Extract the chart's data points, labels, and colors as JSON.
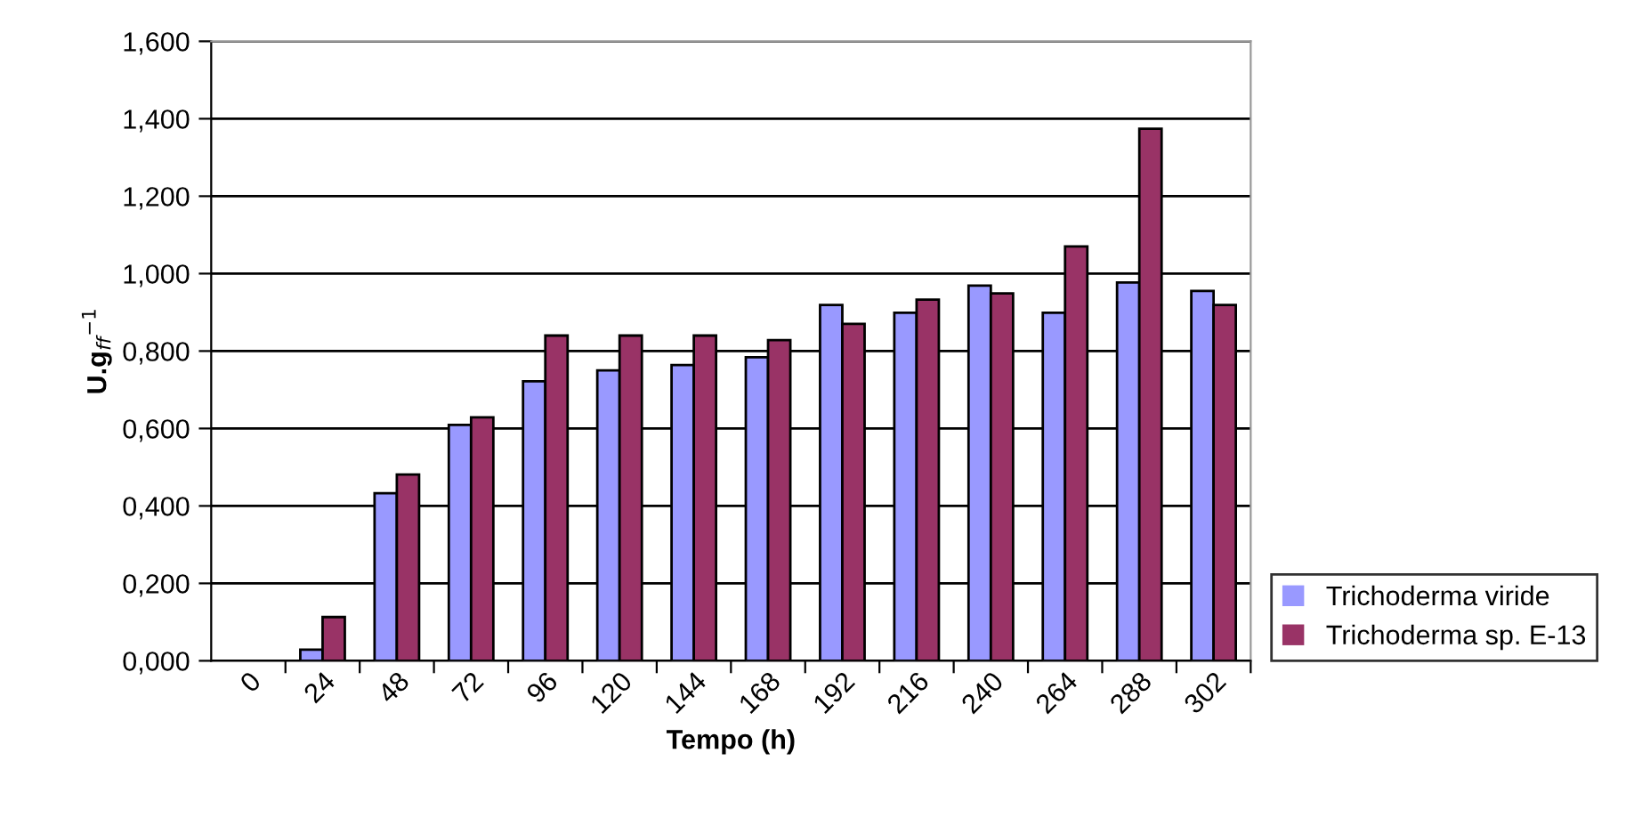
{
  "chart_data": {
    "type": "bar",
    "xlabel": "Tempo (h)",
    "ylabel": "U.g$_{ff}$$^{−1}$",
    "categories": [
      "0",
      "24",
      "48",
      "72",
      "96",
      "120",
      "144",
      "168",
      "192",
      "216",
      "240",
      "264",
      "288",
      "302"
    ],
    "series": [
      {
        "name": "Trichoderma viride",
        "color": "#9999ff",
        "values": [
          0,
          0.029,
          0.433,
          0.609,
          0.722,
          0.75,
          0.764,
          0.784,
          0.919,
          0.899,
          0.969,
          0.899,
          0.977,
          0.955
        ]
      },
      {
        "name": "Trichoderma sp. E-13",
        "color": "#993366",
        "values": [
          0,
          0.113,
          0.481,
          0.629,
          0.84,
          0.84,
          0.84,
          0.828,
          0.87,
          0.933,
          0.949,
          1.07,
          1.374,
          0.919
        ]
      }
    ],
    "ylim": [
      0,
      1.6
    ],
    "yticks": [
      {
        "value": 0,
        "label": "0,000"
      },
      {
        "value": 0.2,
        "label": "0,200"
      },
      {
        "value": 0.4,
        "label": "0,400"
      },
      {
        "value": 0.6,
        "label": "0,600"
      },
      {
        "value": 0.8,
        "label": "0,800"
      },
      {
        "value": 1.0,
        "label": "1,000"
      },
      {
        "value": 1.2,
        "label": "1,200"
      },
      {
        "value": 1.4,
        "label": "1,400"
      },
      {
        "value": 1.6,
        "label": "1,600"
      }
    ],
    "grid": "y",
    "legend": "right"
  }
}
